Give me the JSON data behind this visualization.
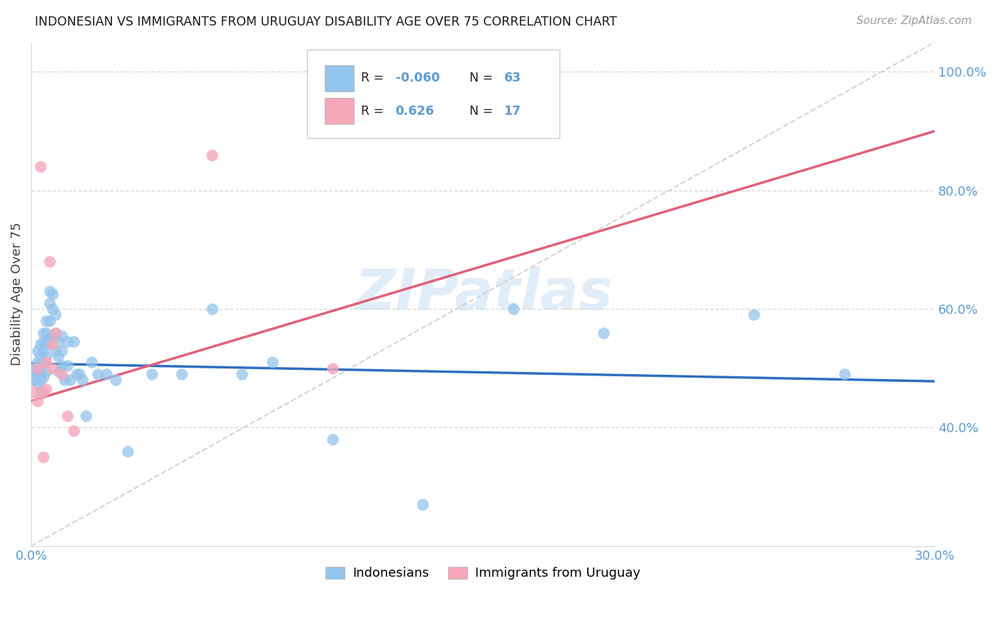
{
  "title": "INDONESIAN VS IMMIGRANTS FROM URUGUAY DISABILITY AGE OVER 75 CORRELATION CHART",
  "source": "Source: ZipAtlas.com",
  "ylabel": "Disability Age Over 75",
  "xlim": [
    0.0,
    0.3
  ],
  "ylim": [
    0.2,
    1.05
  ],
  "xtick_vals": [
    0.0,
    0.05,
    0.1,
    0.15,
    0.2,
    0.25,
    0.3
  ],
  "xtick_labels": [
    "0.0%",
    "",
    "",
    "",
    "",
    "",
    "30.0%"
  ],
  "ytick_vals": [
    0.4,
    0.6,
    0.8,
    1.0
  ],
  "ytick_labels": [
    "40.0%",
    "60.0%",
    "80.0%",
    "100.0%"
  ],
  "legend1_R": "-0.060",
  "legend1_N": "63",
  "legend2_R": "0.626",
  "legend2_N": "17",
  "blue_scatter_color": "#93C4EC",
  "pink_scatter_color": "#F4A7B9",
  "blue_line_color": "#2E6FC0",
  "pink_line_color": "#E0607A",
  "axis_label_color": "#5B9BD5",
  "text_color": "#404040",
  "watermark_color": "#C5DCF2",
  "grid_color": "#D8D8D8",
  "indonesian_x": [
    0.001,
    0.001,
    0.001,
    0.002,
    0.002,
    0.002,
    0.002,
    0.003,
    0.003,
    0.003,
    0.003,
    0.003,
    0.004,
    0.004,
    0.004,
    0.004,
    0.004,
    0.005,
    0.005,
    0.005,
    0.005,
    0.005,
    0.006,
    0.006,
    0.006,
    0.006,
    0.007,
    0.007,
    0.007,
    0.008,
    0.008,
    0.008,
    0.009,
    0.009,
    0.009,
    0.01,
    0.01,
    0.01,
    0.011,
    0.012,
    0.012,
    0.013,
    0.014,
    0.015,
    0.016,
    0.017,
    0.018,
    0.02,
    0.022,
    0.025,
    0.028,
    0.032,
    0.04,
    0.05,
    0.06,
    0.07,
    0.08,
    0.1,
    0.13,
    0.16,
    0.19,
    0.24,
    0.27
  ],
  "indonesian_y": [
    0.5,
    0.49,
    0.48,
    0.53,
    0.51,
    0.495,
    0.475,
    0.54,
    0.52,
    0.5,
    0.48,
    0.46,
    0.56,
    0.545,
    0.53,
    0.51,
    0.485,
    0.58,
    0.56,
    0.54,
    0.52,
    0.495,
    0.63,
    0.61,
    0.58,
    0.55,
    0.625,
    0.6,
    0.555,
    0.59,
    0.56,
    0.53,
    0.545,
    0.52,
    0.495,
    0.555,
    0.53,
    0.505,
    0.48,
    0.545,
    0.505,
    0.48,
    0.545,
    0.49,
    0.49,
    0.48,
    0.42,
    0.51,
    0.49,
    0.49,
    0.48,
    0.36,
    0.49,
    0.49,
    0.6,
    0.49,
    0.51,
    0.38,
    0.27,
    0.6,
    0.56,
    0.59,
    0.49
  ],
  "uruguay_x": [
    0.001,
    0.002,
    0.002,
    0.003,
    0.004,
    0.004,
    0.005,
    0.005,
    0.006,
    0.007,
    0.007,
    0.008,
    0.01,
    0.012,
    0.014,
    0.06,
    0.1
  ],
  "uruguay_y": [
    0.46,
    0.5,
    0.445,
    0.84,
    0.46,
    0.35,
    0.51,
    0.465,
    0.68,
    0.54,
    0.5,
    0.56,
    0.49,
    0.42,
    0.395,
    0.86,
    0.5
  ],
  "blue_line_x0": 0.0,
  "blue_line_x1": 0.3,
  "blue_line_y0": 0.508,
  "blue_line_y1": 0.478,
  "pink_line_x0": 0.0,
  "pink_line_x1": 0.3,
  "pink_line_y0": 0.445,
  "pink_line_y1": 0.9
}
